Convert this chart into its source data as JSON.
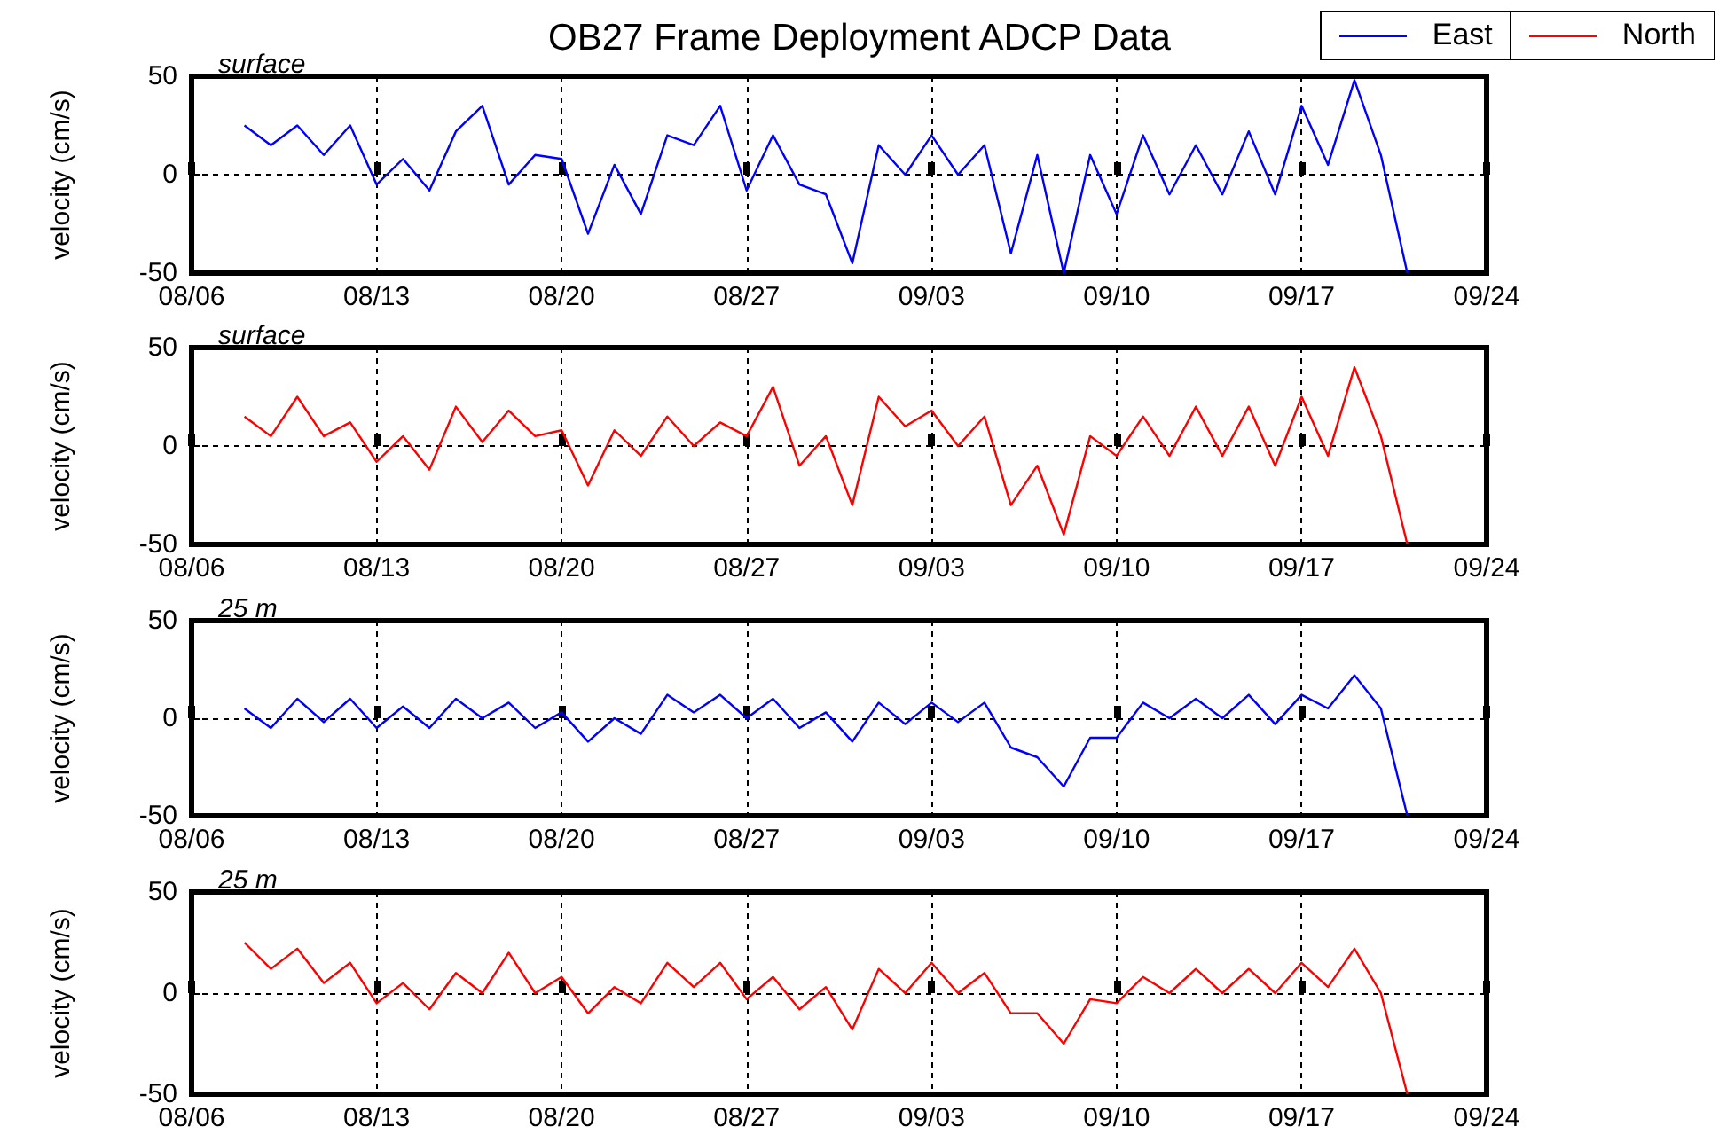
{
  "chart_data": [
    {
      "type": "line",
      "title": "OB27 Frame Deployment ADCP Data",
      "subtitle": "surface",
      "ylabel": "velocity (cm/s)",
      "legend": "top right",
      "grid": true,
      "xlim": [
        "--08-06",
        "--09-24"
      ],
      "xticks": [
        {
          "value": "--08-06",
          "label": "08/06"
        },
        {
          "value": "--08-13",
          "label": "08/13"
        },
        {
          "value": "--08-20",
          "label": "08/20"
        },
        {
          "value": "--08-27",
          "label": "08/27"
        },
        {
          "value": "--09-03",
          "label": "09/03"
        },
        {
          "value": "--09-10",
          "label": "09/10"
        },
        {
          "value": "--09-17",
          "label": "09/17"
        },
        {
          "value": "--09-24",
          "label": "09/24"
        }
      ],
      "ylim": [
        -50,
        50
      ],
      "yticks": [
        -50,
        0,
        50
      ],
      "x": [
        "--08-08",
        "--08-09",
        "--08-10",
        "--08-11",
        "--08-12",
        "--08-13",
        "--08-14",
        "--08-15",
        "--08-16",
        "--08-17",
        "--08-18",
        "--08-19",
        "--08-20",
        "--08-21",
        "--08-22",
        "--08-23",
        "--08-24",
        "--08-25",
        "--08-26",
        "--08-27",
        "--08-28",
        "--08-29",
        "--08-30",
        "--08-31",
        "--09-01",
        "--09-02",
        "--09-03",
        "--09-04",
        "--09-05",
        "--09-06",
        "--09-07",
        "--09-08",
        "--09-09",
        "--09-10",
        "--09-11",
        "--09-12",
        "--09-13",
        "--09-14",
        "--09-15",
        "--09-16",
        "--09-17",
        "--09-18",
        "--09-19",
        "--09-20",
        "--09-21"
      ],
      "series": [
        {
          "name": "East",
          "color": "#0000ff",
          "values": [
            25,
            15,
            25,
            10,
            25,
            -5,
            8,
            -8,
            22,
            35,
            -5,
            10,
            8,
            -30,
            5,
            -20,
            20,
            15,
            35,
            -8,
            20,
            -5,
            -10,
            -45,
            15,
            0,
            20,
            0,
            15,
            -40,
            10,
            -50,
            10,
            -20,
            20,
            -10,
            15,
            -10,
            22,
            -10,
            35,
            5,
            48,
            10,
            -50
          ]
        }
      ]
    },
    {
      "type": "line",
      "subtitle": "surface",
      "ylabel": "velocity (cm/s)",
      "legend": "top right",
      "grid": true,
      "xlim": [
        "--08-06",
        "--09-24"
      ],
      "xticks": [
        {
          "value": "--08-06",
          "label": "08/06"
        },
        {
          "value": "--08-13",
          "label": "08/13"
        },
        {
          "value": "--08-20",
          "label": "08/20"
        },
        {
          "value": "--08-27",
          "label": "08/27"
        },
        {
          "value": "--09-03",
          "label": "09/03"
        },
        {
          "value": "--09-10",
          "label": "09/10"
        },
        {
          "value": "--09-17",
          "label": "09/17"
        },
        {
          "value": "--09-24",
          "label": "09/24"
        }
      ],
      "ylim": [
        -50,
        50
      ],
      "yticks": [
        -50,
        0,
        50
      ],
      "x": [
        "--08-08",
        "--08-09",
        "--08-10",
        "--08-11",
        "--08-12",
        "--08-13",
        "--08-14",
        "--08-15",
        "--08-16",
        "--08-17",
        "--08-18",
        "--08-19",
        "--08-20",
        "--08-21",
        "--08-22",
        "--08-23",
        "--08-24",
        "--08-25",
        "--08-26",
        "--08-27",
        "--08-28",
        "--08-29",
        "--08-30",
        "--08-31",
        "--09-01",
        "--09-02",
        "--09-03",
        "--09-04",
        "--09-05",
        "--09-06",
        "--09-07",
        "--09-08",
        "--09-09",
        "--09-10",
        "--09-11",
        "--09-12",
        "--09-13",
        "--09-14",
        "--09-15",
        "--09-16",
        "--09-17",
        "--09-18",
        "--09-19",
        "--09-20",
        "--09-21"
      ],
      "series": [
        {
          "name": "North",
          "color": "#ff0000",
          "values": [
            15,
            5,
            25,
            5,
            12,
            -8,
            5,
            -12,
            20,
            2,
            18,
            5,
            8,
            -20,
            8,
            -5,
            15,
            0,
            12,
            5,
            30,
            -10,
            5,
            -30,
            25,
            10,
            18,
            0,
            15,
            -30,
            -10,
            -45,
            5,
            -5,
            15,
            -5,
            20,
            -5,
            20,
            -10,
            25,
            -5,
            40,
            5,
            -50
          ]
        }
      ]
    },
    {
      "type": "line",
      "subtitle": "25 m",
      "ylabel": "velocity (cm/s)",
      "grid": true,
      "xlim": [
        "--08-06",
        "--09-24"
      ],
      "xticks": [
        {
          "value": "--08-06",
          "label": "08/06"
        },
        {
          "value": "--08-13",
          "label": "08/13"
        },
        {
          "value": "--08-20",
          "label": "08/20"
        },
        {
          "value": "--08-27",
          "label": "08/27"
        },
        {
          "value": "--09-03",
          "label": "09/03"
        },
        {
          "value": "--09-10",
          "label": "09/10"
        },
        {
          "value": "--09-17",
          "label": "09/17"
        },
        {
          "value": "--09-24",
          "label": "09/24"
        }
      ],
      "ylim": [
        -50,
        50
      ],
      "yticks": [
        -50,
        0,
        50
      ],
      "x": [
        "--08-08",
        "--08-09",
        "--08-10",
        "--08-11",
        "--08-12",
        "--08-13",
        "--08-14",
        "--08-15",
        "--08-16",
        "--08-17",
        "--08-18",
        "--08-19",
        "--08-20",
        "--08-21",
        "--08-22",
        "--08-23",
        "--08-24",
        "--08-25",
        "--08-26",
        "--08-27",
        "--08-28",
        "--08-29",
        "--08-30",
        "--08-31",
        "--09-01",
        "--09-02",
        "--09-03",
        "--09-04",
        "--09-05",
        "--09-06",
        "--09-07",
        "--09-08",
        "--09-09",
        "--09-10",
        "--09-11",
        "--09-12",
        "--09-13",
        "--09-14",
        "--09-15",
        "--09-16",
        "--09-17",
        "--09-18",
        "--09-19",
        "--09-20",
        "--09-21"
      ],
      "series": [
        {
          "color": "#0000ff",
          "values": [
            5,
            -5,
            10,
            -2,
            10,
            -5,
            6,
            -5,
            10,
            0,
            8,
            -5,
            3,
            -12,
            0,
            -8,
            12,
            3,
            12,
            0,
            10,
            -5,
            3,
            -12,
            8,
            -3,
            8,
            -2,
            8,
            -15,
            -20,
            -35,
            -10,
            -10,
            8,
            0,
            10,
            0,
            12,
            -3,
            12,
            5,
            22,
            5,
            -50
          ]
        }
      ]
    },
    {
      "type": "line",
      "subtitle": "25 m",
      "ylabel": "velocity (cm/s)",
      "grid": true,
      "xlim": [
        "--08-06",
        "--09-24"
      ],
      "xticks": [
        {
          "value": "--08-06",
          "label": "08/06"
        },
        {
          "value": "--08-13",
          "label": "08/13"
        },
        {
          "value": "--08-20",
          "label": "08/20"
        },
        {
          "value": "--08-27",
          "label": "08/27"
        },
        {
          "value": "--09-03",
          "label": "09/03"
        },
        {
          "value": "--09-10",
          "label": "09/10"
        },
        {
          "value": "--09-17",
          "label": "09/17"
        },
        {
          "value": "--09-24",
          "label": "09/24"
        }
      ],
      "ylim": [
        -50,
        50
      ],
      "yticks": [
        -50,
        0,
        50
      ],
      "x": [
        "--08-08",
        "--08-09",
        "--08-10",
        "--08-11",
        "--08-12",
        "--08-13",
        "--08-14",
        "--08-15",
        "--08-16",
        "--08-17",
        "--08-18",
        "--08-19",
        "--08-20",
        "--08-21",
        "--08-22",
        "--08-23",
        "--08-24",
        "--08-25",
        "--08-26",
        "--08-27",
        "--08-28",
        "--08-29",
        "--08-30",
        "--08-31",
        "--09-01",
        "--09-02",
        "--09-03",
        "--09-04",
        "--09-05",
        "--09-06",
        "--09-07",
        "--09-08",
        "--09-09",
        "--09-10",
        "--09-11",
        "--09-12",
        "--09-13",
        "--09-14",
        "--09-15",
        "--09-16",
        "--09-17",
        "--09-18",
        "--09-19",
        "--09-20",
        "--09-21"
      ],
      "series": [
        {
          "color": "#ff0000",
          "values": [
            25,
            12,
            22,
            5,
            15,
            -5,
            5,
            -8,
            10,
            0,
            20,
            0,
            8,
            -10,
            3,
            -5,
            15,
            3,
            15,
            -3,
            8,
            -8,
            3,
            -18,
            12,
            0,
            15,
            0,
            10,
            -10,
            -10,
            -25,
            -3,
            -5,
            8,
            0,
            12,
            0,
            12,
            0,
            15,
            3,
            22,
            0,
            -50
          ]
        }
      ]
    }
  ]
}
